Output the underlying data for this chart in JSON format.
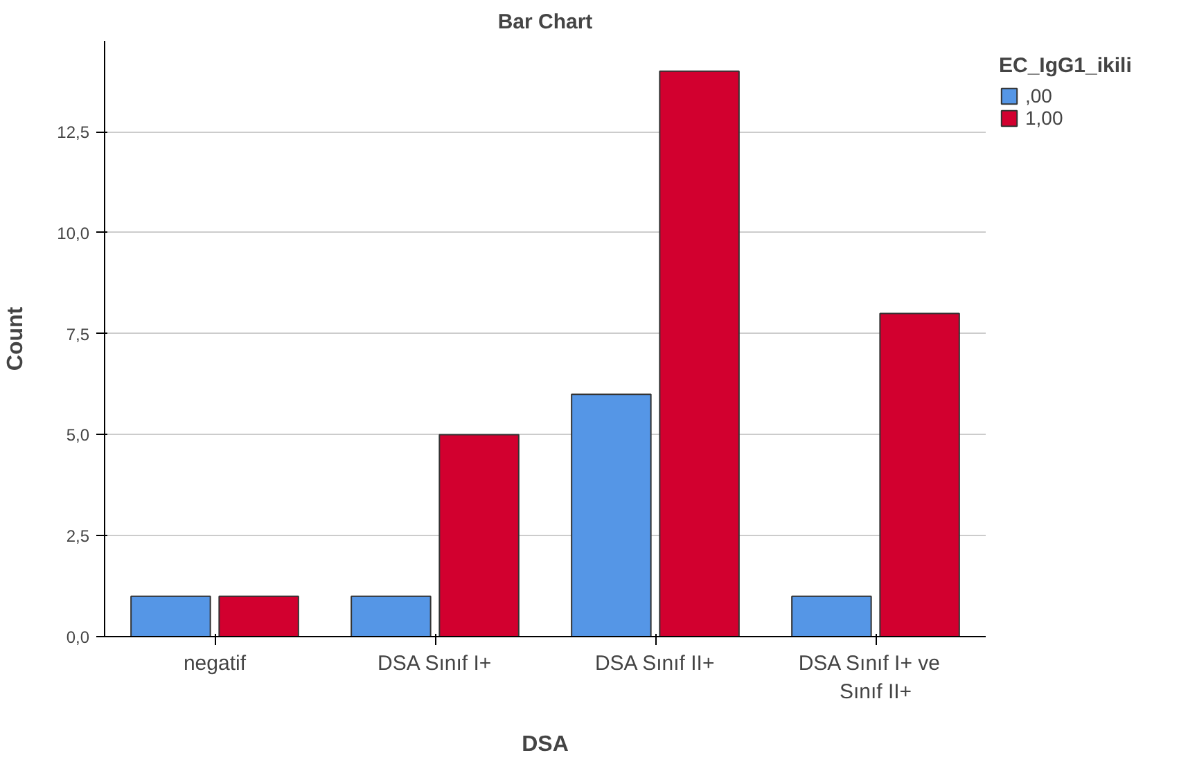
{
  "chart_data": {
    "type": "bar",
    "title": "Bar Chart",
    "xlabel": "DSA",
    "ylabel": "Count",
    "legend_title": "EC_IgG1_ikili",
    "categories": [
      "negatif",
      "DSA Sınıf I+",
      "DSA Sınıf II+",
      "DSA Sınıf I+   ve\nSınıf II+"
    ],
    "series": [
      {
        "name": ",00",
        "color": "#5596e6",
        "values": [
          1,
          1,
          6,
          1
        ]
      },
      {
        "name": "1,00",
        "color": "#d2002f",
        "values": [
          1,
          5,
          14,
          8
        ]
      }
    ],
    "ylim": [
      0,
      14.75
    ],
    "yticks": [
      {
        "value": 0,
        "label": "0,0"
      },
      {
        "value": 2.5,
        "label": "2,5"
      },
      {
        "value": 5,
        "label": "5,0"
      },
      {
        "value": 7.5,
        "label": "7,5"
      },
      {
        "value": 10,
        "label": "10,0"
      },
      {
        "value": 12.5,
        "label": "12,5"
      }
    ],
    "grid": "y",
    "legend": "top right"
  }
}
